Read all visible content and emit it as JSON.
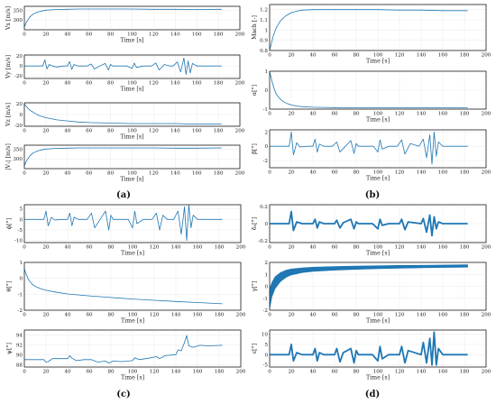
{
  "panel_labels": {
    "a": "(a)",
    "b": "(b)",
    "c": "(c)",
    "d": "(d)"
  },
  "chart_data": [
    {
      "id": "a1",
      "type": "line",
      "xlabel": "Time [s]",
      "ylabel": "Vx [m/s]",
      "xlim": [
        0,
        200
      ],
      "ylim": [
        250,
        370
      ],
      "xticks": [
        0,
        20,
        40,
        60,
        80,
        100,
        120,
        140,
        160,
        180,
        200
      ],
      "yticks": [
        300,
        350
      ],
      "series": [
        {
          "x": [
            0,
            2,
            5,
            8,
            12,
            16,
            20,
            25,
            30,
            40,
            50,
            60,
            80,
            100,
            120,
            140,
            160,
            183
          ],
          "y": [
            265,
            290,
            315,
            330,
            340,
            346,
            350,
            352,
            354,
            355,
            356,
            356,
            356,
            356,
            355,
            355,
            354,
            355
          ]
        }
      ]
    },
    {
      "id": "a2",
      "type": "line",
      "xlabel": "Time [s]",
      "ylabel": "Vy [m/s]",
      "xlim": [
        0,
        200
      ],
      "ylim": [
        -25,
        22
      ],
      "xticks": [
        0,
        20,
        40,
        60,
        80,
        100,
        120,
        140,
        160,
        180,
        200
      ],
      "yticks": [
        -20,
        0,
        20
      ],
      "series": [
        {
          "x": [
            0,
            10,
            17,
            19,
            21,
            23,
            26,
            30,
            36,
            40,
            42,
            44,
            46,
            50,
            58,
            62,
            65,
            70,
            75,
            78,
            80,
            82,
            86,
            95,
            100,
            102,
            104,
            110,
            118,
            122,
            125,
            130,
            135,
            138,
            142,
            145,
            148,
            150,
            152,
            154,
            156,
            160,
            165,
            170,
            183
          ],
          "y": [
            0,
            0,
            0,
            12,
            -6,
            3,
            0,
            -2,
            0,
            0,
            9,
            -7,
            3,
            0,
            0,
            4,
            -6,
            0,
            5,
            -8,
            3,
            0,
            0,
            0,
            -5,
            6,
            -3,
            0,
            0,
            6,
            -8,
            3,
            0,
            0,
            8,
            -12,
            16,
            -17,
            10,
            -14,
            5,
            0,
            0,
            0,
            0
          ]
        }
      ]
    },
    {
      "id": "a3",
      "type": "line",
      "xlabel": "Time [s]",
      "ylabel": "Vz [m/s]",
      "xlim": [
        0,
        200
      ],
      "ylim": [
        -22,
        22
      ],
      "xticks": [
        0,
        20,
        40,
        60,
        80,
        100,
        120,
        140,
        160,
        180,
        200
      ],
      "yticks": [
        -20,
        0,
        20
      ],
      "series": [
        {
          "x": [
            0,
            3,
            6,
            10,
            15,
            20,
            30,
            40,
            50,
            60,
            80,
            100,
            120,
            140,
            160,
            183
          ],
          "y": [
            20,
            12,
            7,
            2,
            -3,
            -6,
            -10,
            -12,
            -14,
            -15,
            -16,
            -17,
            -17,
            -17,
            -18,
            -18
          ]
        }
      ]
    },
    {
      "id": "a4",
      "type": "line",
      "xlabel": "Time [s]",
      "ylabel": "|V₁| [m/s]",
      "xlim": [
        0,
        200
      ],
      "ylim": [
        250,
        370
      ],
      "xticks": [
        0,
        20,
        40,
        60,
        80,
        100,
        120,
        140,
        160,
        180,
        200
      ],
      "yticks": [
        300,
        350
      ],
      "series": [
        {
          "x": [
            0,
            2,
            5,
            8,
            12,
            16,
            20,
            25,
            30,
            40,
            50,
            60,
            80,
            100,
            120,
            140,
            160,
            183
          ],
          "y": [
            265,
            290,
            315,
            330,
            340,
            346,
            350,
            352,
            354,
            355,
            356,
            356,
            356,
            356,
            356,
            355,
            355,
            356
          ]
        }
      ]
    },
    {
      "id": "b1",
      "type": "line",
      "xlabel": "Time [s]",
      "ylabel": "Mach [-]",
      "xlim": [
        0,
        200
      ],
      "ylim": [
        0.8,
        1.25
      ],
      "xticks": [
        0,
        20,
        40,
        60,
        80,
        100,
        120,
        140,
        160,
        180,
        200
      ],
      "yticks": [
        0.8,
        0.9,
        1,
        1.1,
        1.2
      ],
      "series": [
        {
          "x": [
            0,
            3,
            6,
            10,
            15,
            20,
            25,
            30,
            40,
            50,
            60,
            80,
            100,
            120,
            140,
            160,
            183
          ],
          "y": [
            0.8,
            0.93,
            1.02,
            1.09,
            1.14,
            1.17,
            1.185,
            1.195,
            1.2,
            1.2,
            1.2,
            1.2,
            1.2,
            1.195,
            1.195,
            1.19,
            1.19
          ]
        }
      ]
    },
    {
      "id": "b2",
      "type": "line",
      "xlabel": "Time [s]",
      "ylabel": "α[°]",
      "xlim": [
        0,
        200
      ],
      "ylim": [
        -1,
        1
      ],
      "xticks": [
        0,
        20,
        40,
        60,
        80,
        100,
        120,
        140,
        160,
        180,
        200
      ],
      "yticks": [
        -1,
        0,
        1
      ],
      "series": [
        {
          "x": [
            0,
            2,
            4,
            6,
            9,
            12,
            16,
            20,
            25,
            30,
            40,
            50,
            60,
            80,
            100,
            140,
            183
          ],
          "y": [
            1,
            0.5,
            0.1,
            -0.2,
            -0.42,
            -0.58,
            -0.7,
            -0.78,
            -0.84,
            -0.87,
            -0.9,
            -0.91,
            -0.92,
            -0.93,
            -0.93,
            -0.93,
            -0.93
          ]
        }
      ]
    },
    {
      "id": "b3",
      "type": "line",
      "xlabel": "Time [s]",
      "ylabel": "β[°]",
      "xlim": [
        0,
        200
      ],
      "ylim": [
        -3,
        2.3
      ],
      "xticks": [
        0,
        20,
        40,
        60,
        80,
        100,
        120,
        140,
        160,
        180,
        200
      ],
      "yticks": [
        -2,
        0,
        2
      ],
      "series": [
        {
          "x": [
            0,
            15,
            18,
            20,
            22,
            25,
            28,
            35,
            40,
            42,
            44,
            46,
            50,
            58,
            62,
            65,
            70,
            75,
            78,
            80,
            82,
            88,
            96,
            100,
            102,
            104,
            110,
            118,
            122,
            125,
            130,
            138,
            142,
            145,
            148,
            150,
            152,
            154,
            156,
            160,
            165,
            183
          ],
          "y": [
            0,
            0,
            0,
            2,
            -1.2,
            0.5,
            -0.1,
            0,
            0,
            1,
            -0.8,
            0.3,
            0,
            0,
            0.6,
            -0.8,
            0,
            0.8,
            -1,
            0.4,
            0,
            0,
            0,
            -0.8,
            0.9,
            -0.4,
            0,
            0,
            0.9,
            -1.1,
            0.4,
            0,
            1,
            -1.6,
            1.6,
            -2.5,
            2,
            -1.4,
            0.6,
            0,
            0,
            0
          ]
        }
      ]
    },
    {
      "id": "c1",
      "type": "line",
      "xlabel": "Time [s]",
      "ylabel": "ϕ[°]",
      "xlim": [
        0,
        200
      ],
      "ylim": [
        -11,
        7
      ],
      "xticks": [
        0,
        20,
        40,
        60,
        80,
        100,
        120,
        140,
        160,
        180,
        200
      ],
      "yticks": [
        -10,
        -5,
        0,
        5
      ],
      "series": [
        {
          "x": [
            0,
            15,
            18,
            20,
            22,
            25,
            28,
            35,
            40,
            42,
            44,
            46,
            50,
            58,
            62,
            65,
            70,
            75,
            78,
            80,
            82,
            88,
            96,
            100,
            102,
            104,
            110,
            118,
            122,
            125,
            128,
            132,
            138,
            142,
            145,
            148,
            150,
            152,
            154,
            156,
            160,
            165,
            183
          ],
          "y": [
            0,
            0,
            0,
            4,
            -3,
            1,
            -0.3,
            0,
            0,
            3,
            -3,
            1,
            0,
            0,
            3,
            -4,
            0,
            4,
            -5,
            2,
            0,
            0,
            0,
            -4,
            4,
            -2,
            0,
            0,
            3,
            -5,
            2,
            0,
            0,
            4,
            -7,
            6,
            -10,
            7,
            -4,
            2,
            0,
            0,
            0
          ]
        }
      ]
    },
    {
      "id": "c2",
      "type": "line",
      "xlabel": "Time [s]",
      "ylabel": "θ[°]",
      "xlim": [
        0,
        200
      ],
      "ylim": [
        -2,
        1
      ],
      "xticks": [
        0,
        20,
        40,
        60,
        80,
        100,
        120,
        140,
        160,
        180,
        200
      ],
      "yticks": [
        -2,
        -1,
        0,
        1
      ],
      "series": [
        {
          "x": [
            0,
            2,
            4,
            7,
            10,
            15,
            20,
            30,
            40,
            60,
            80,
            100,
            120,
            140,
            160,
            183
          ],
          "y": [
            0.6,
            0.2,
            -0.1,
            -0.35,
            -0.5,
            -0.65,
            -0.75,
            -0.88,
            -0.98,
            -1.1,
            -1.2,
            -1.3,
            -1.38,
            -1.45,
            -1.52,
            -1.6
          ]
        }
      ]
    },
    {
      "id": "c3",
      "type": "line",
      "xlabel": "Time [s]",
      "ylabel": "ψ[°]",
      "xlim": [
        0,
        200
      ],
      "ylim": [
        87.5,
        95
      ],
      "xticks": [
        0,
        20,
        40,
        60,
        80,
        100,
        120,
        140,
        160,
        180,
        200
      ],
      "yticks": [
        88,
        90,
        92,
        94
      ],
      "series": [
        {
          "x": [
            0,
            15,
            18,
            20,
            22,
            26,
            30,
            40,
            42,
            44,
            48,
            55,
            62,
            65,
            68,
            75,
            78,
            82,
            90,
            100,
            102,
            106,
            115,
            122,
            125,
            130,
            140,
            142,
            145,
            148,
            150,
            152,
            156,
            162,
            170,
            183
          ],
          "y": [
            89,
            89,
            89,
            88.5,
            88.6,
            89.2,
            89.2,
            89.2,
            89.8,
            89.3,
            88.8,
            89,
            89,
            88.7,
            88.5,
            88.7,
            88.3,
            88.7,
            88.6,
            88.8,
            89.4,
            89,
            89.3,
            89.6,
            89.2,
            89.8,
            90,
            91,
            90.8,
            92.5,
            93.9,
            91.8,
            91.5,
            91.9,
            91.8,
            91.9
          ]
        }
      ]
    },
    {
      "id": "d1",
      "type": "line",
      "xlabel": "Time [s]",
      "ylabel": "δₐ[°]",
      "xlim": [
        0,
        200
      ],
      "ylim": [
        -0.22,
        0.22
      ],
      "xticks": [
        0,
        20,
        40,
        60,
        80,
        100,
        120,
        140,
        160,
        180,
        200
      ],
      "yticks": [
        -0.2,
        0,
        0.2
      ],
      "series": [
        {
          "x": [
            0,
            15,
            18,
            20,
            22,
            25,
            30,
            40,
            42,
            44,
            46,
            50,
            60,
            62,
            65,
            68,
            75,
            78,
            80,
            82,
            95,
            100,
            102,
            104,
            110,
            120,
            122,
            125,
            128,
            140,
            142,
            145,
            148,
            150,
            152,
            154,
            156,
            160,
            183
          ],
          "y": [
            0,
            0,
            0,
            0.14,
            -0.08,
            0.02,
            0,
            0,
            0.05,
            -0.05,
            0.02,
            0,
            0,
            0.04,
            -0.05,
            0.01,
            0.05,
            -0.06,
            0.02,
            0,
            0,
            -0.06,
            0.05,
            -0.02,
            0,
            0,
            0.05,
            -0.07,
            0.02,
            0,
            0.06,
            -0.1,
            0.1,
            -0.14,
            0.08,
            -0.06,
            0.02,
            0,
            0
          ]
        }
      ]
    },
    {
      "id": "d2",
      "type": "area",
      "xlabel": "Time [s]",
      "ylabel": "γ[°]",
      "xlim": [
        0,
        200
      ],
      "ylim": [
        -2,
        2
      ],
      "xticks": [
        0,
        20,
        40,
        60,
        80,
        100,
        120,
        140,
        160,
        180,
        200
      ],
      "yticks": [
        -2,
        -1,
        0,
        1,
        2
      ],
      "series": [
        {
          "name": "upper",
          "x": [
            0,
            2,
            5,
            10,
            15,
            20,
            30,
            40,
            60,
            80,
            100,
            120,
            140,
            160,
            183
          ],
          "y": [
            -0.2,
            0.3,
            0.8,
            1.15,
            1.35,
            1.45,
            1.55,
            1.6,
            1.65,
            1.7,
            1.72,
            1.75,
            1.76,
            1.78,
            1.8
          ]
        },
        {
          "name": "lower",
          "x": [
            0,
            2,
            5,
            10,
            15,
            20,
            30,
            40,
            60,
            80,
            100,
            120,
            140,
            160,
            183
          ],
          "y": [
            -1.9,
            -0.9,
            -0.2,
            0.4,
            0.75,
            0.95,
            1.15,
            1.25,
            1.35,
            1.42,
            1.48,
            1.52,
            1.55,
            1.58,
            1.6
          ]
        }
      ]
    },
    {
      "id": "d3",
      "type": "line",
      "xlabel": "Time [s]",
      "ylabel": "ε[°]",
      "xlim": [
        0,
        200
      ],
      "ylim": [
        -6,
        12
      ],
      "xticks": [
        0,
        20,
        40,
        60,
        80,
        100,
        120,
        140,
        160,
        180,
        200
      ],
      "yticks": [
        -5,
        0,
        5,
        10
      ],
      "series": [
        {
          "x": [
            0,
            15,
            18,
            20,
            22,
            25,
            30,
            40,
            42,
            44,
            46,
            50,
            60,
            62,
            65,
            68,
            75,
            78,
            80,
            82,
            95,
            100,
            102,
            104,
            110,
            120,
            122,
            125,
            128,
            140,
            142,
            145,
            148,
            150,
            152,
            154,
            156,
            160,
            183
          ],
          "y": [
            0,
            0,
            0,
            5,
            -3,
            1,
            0,
            0,
            3,
            -3,
            1,
            0,
            0,
            3,
            -3.5,
            1,
            3,
            -4,
            2,
            0,
            0,
            -3,
            4,
            -2,
            0,
            0,
            4,
            -4,
            2,
            0,
            6,
            -4,
            8,
            -5,
            11,
            -5,
            3,
            0,
            0
          ]
        }
      ]
    }
  ]
}
